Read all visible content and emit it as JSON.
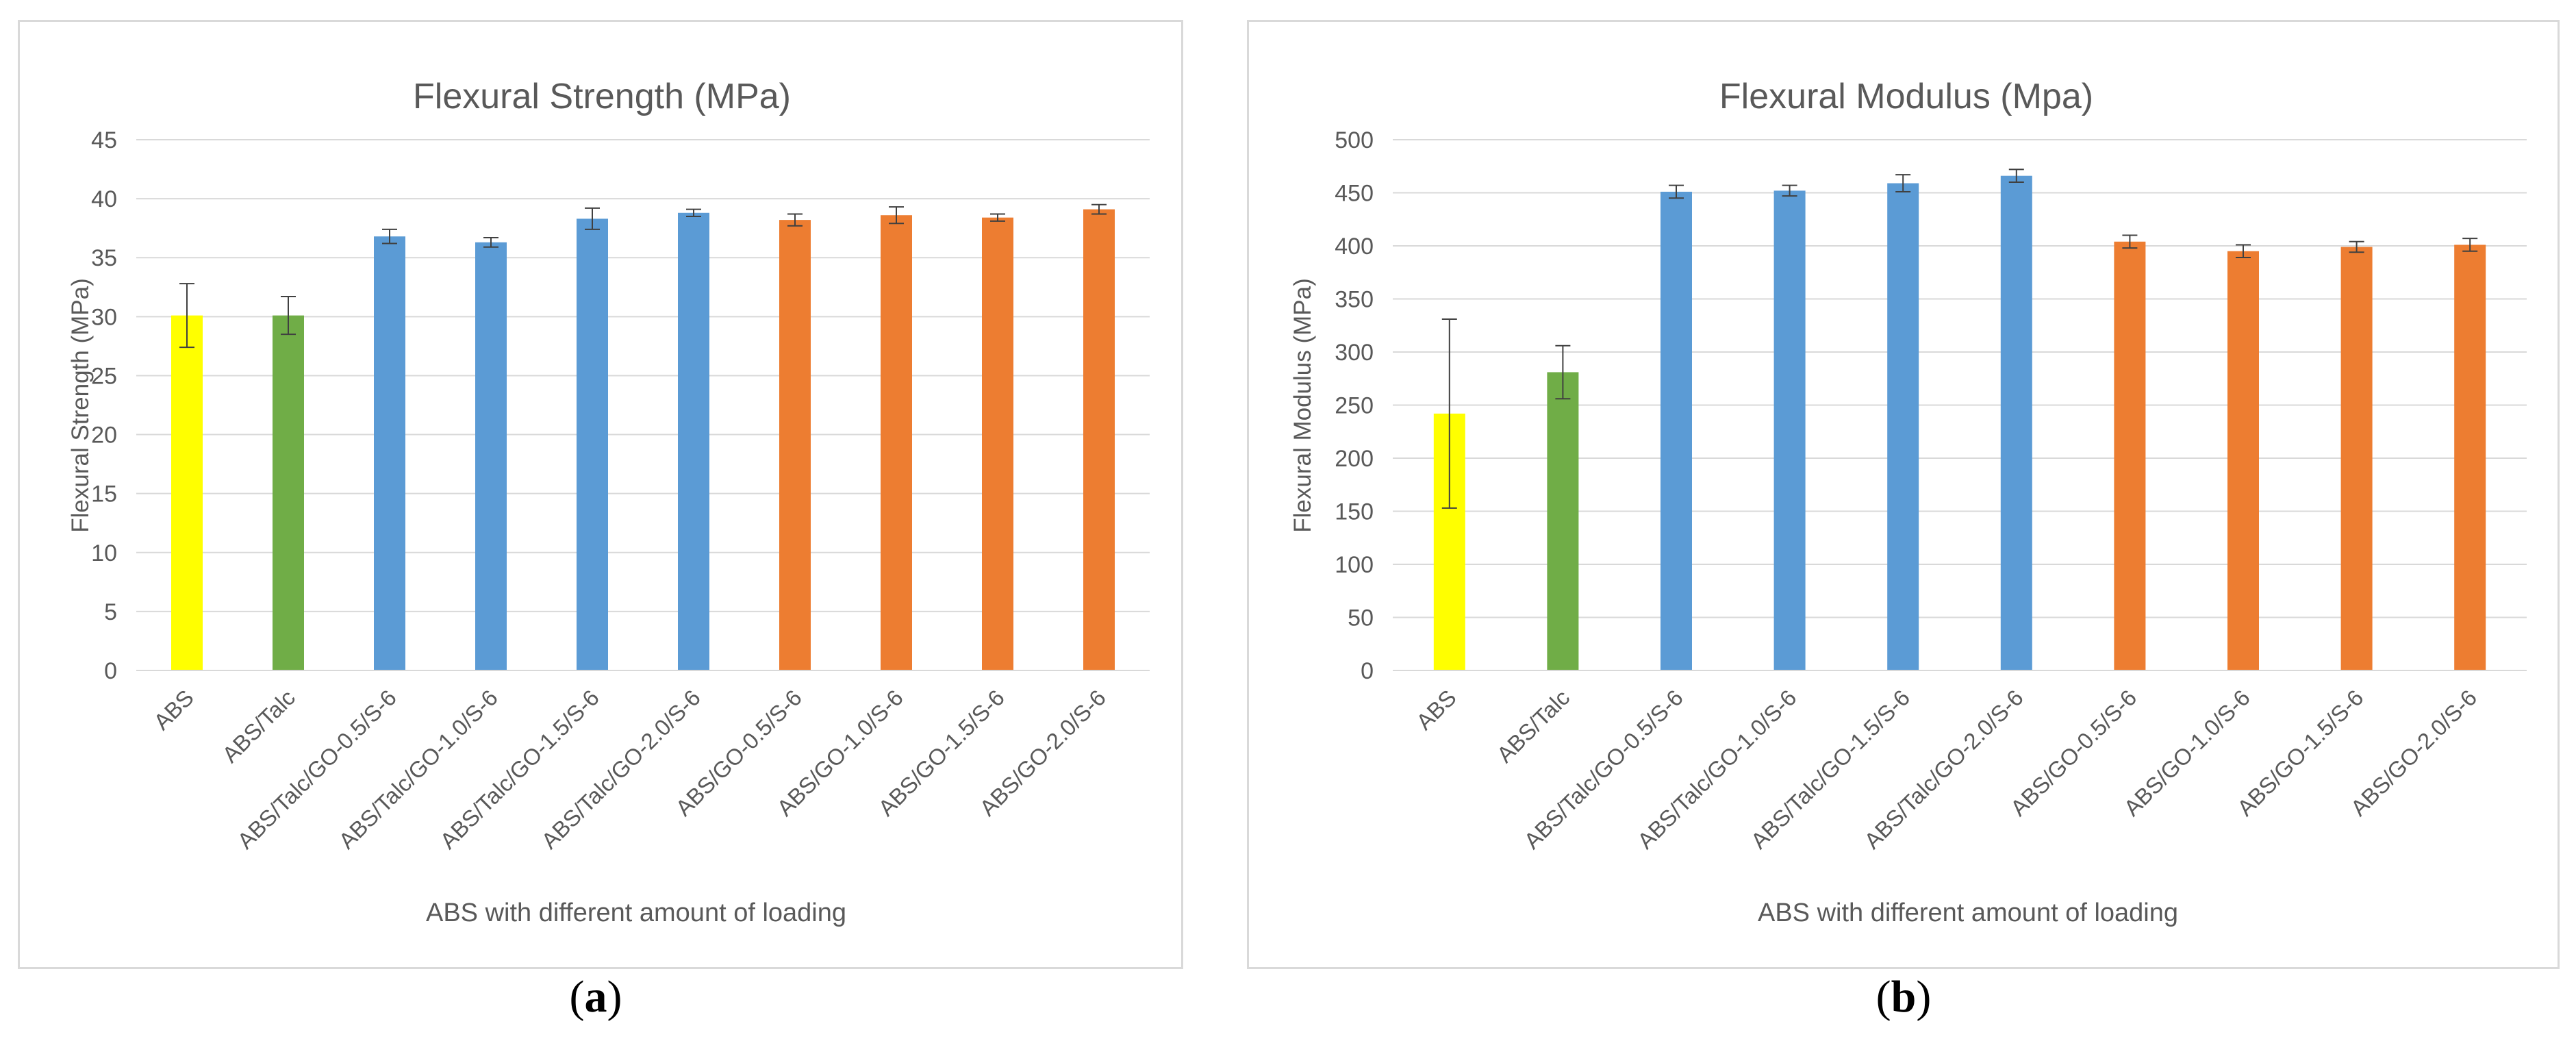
{
  "chart_data": [
    {
      "type": "bar",
      "title": "Flexural Strength (MPa)",
      "xlabel": "ABS with different amount of loading",
      "ylabel": "Flexural Strength (MPa)",
      "ylim": [
        0,
        45
      ],
      "yticks": [
        0,
        5,
        10,
        15,
        20,
        25,
        30,
        35,
        40,
        45
      ],
      "grid": true,
      "categories": [
        "ABS",
        "ABS/Talc",
        "ABS/Talc/GO-0.5/S-6",
        "ABS/Talc/GO-1.0/S-6",
        "ABS/Talc/GO-1.5/S-6",
        "ABS/Talc/GO-2.0/S-6",
        "ABS/GO-0.5/S-6",
        "ABS/GO-1.0/S-6",
        "ABS/GO-1.5/S-6",
        "ABS/GO-2.0/S-6"
      ],
      "values": [
        30.1,
        30.1,
        36.8,
        36.3,
        38.3,
        38.8,
        38.2,
        38.6,
        38.4,
        39.1
      ],
      "errors": [
        2.7,
        1.6,
        0.6,
        0.4,
        0.9,
        0.3,
        0.5,
        0.7,
        0.3,
        0.4
      ],
      "colors": [
        "#ffff00",
        "#70ad47",
        "#5b9bd5",
        "#5b9bd5",
        "#5b9bd5",
        "#5b9bd5",
        "#ed7d31",
        "#ed7d31",
        "#ed7d31",
        "#ed7d31"
      ]
    },
    {
      "type": "bar",
      "title": "Flexural Modulus (Mpa)",
      "xlabel": "ABS with different amount of loading",
      "ylabel": "Flexural Modulus (MPa)",
      "ylim": [
        0,
        500
      ],
      "yticks": [
        0,
        50,
        100,
        150,
        200,
        250,
        300,
        350,
        400,
        450,
        500
      ],
      "grid": true,
      "categories": [
        "ABS",
        "ABS/Talc",
        "ABS/Talc/GO-0.5/S-6",
        "ABS/Talc/GO-1.0/S-6",
        "ABS/Talc/GO-1.5/S-6",
        "ABS/Talc/GO-2.0/S-6",
        "ABS/GO-0.5/S-6",
        "ABS/GO-1.0/S-6",
        "ABS/GO-1.5/S-6",
        "ABS/GO-2.0/S-6"
      ],
      "values": [
        242,
        281,
        451,
        452,
        459,
        466,
        404,
        395,
        399,
        401
      ],
      "errors": [
        89,
        25,
        6,
        5,
        8,
        6,
        6,
        6,
        5,
        6
      ],
      "colors": [
        "#ffff00",
        "#70ad47",
        "#5b9bd5",
        "#5b9bd5",
        "#5b9bd5",
        "#5b9bd5",
        "#ed7d31",
        "#ed7d31",
        "#ed7d31",
        "#ed7d31"
      ]
    }
  ],
  "captions": {
    "a_open": "(",
    "a_letter": "a",
    "a_close": ")",
    "b_open": "(",
    "b_letter": "b",
    "b_close": ")"
  }
}
